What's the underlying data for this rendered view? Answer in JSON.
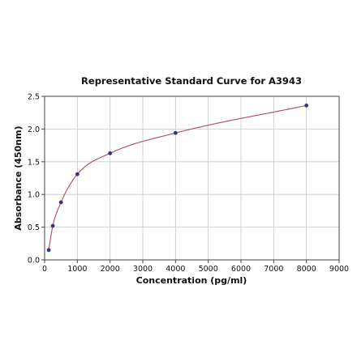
{
  "chart_data": {
    "type": "scatter",
    "title": "Representative Standard Curve for A3943",
    "xlabel": "Concentration (pg/ml)",
    "ylabel": "Absorbance (450nm)",
    "xlim": [
      0,
      9000
    ],
    "ylim": [
      0,
      2.5
    ],
    "xticks": [
      "0",
      "1000",
      "2000",
      "3000",
      "4000",
      "5000",
      "6000",
      "7000",
      "8000",
      "9000"
    ],
    "yticks": [
      "0.0",
      "0.5",
      "1.0",
      "1.5",
      "2.0",
      "2.5"
    ],
    "grid": true,
    "series": [
      {
        "x": [
          125,
          250,
          500,
          1000,
          2000,
          4000,
          8000
        ],
        "y": [
          0.15,
          0.52,
          0.88,
          1.31,
          1.63,
          1.94,
          2.36
        ],
        "fit_curve": true
      }
    ],
    "colors": {
      "points": "#2e3a78",
      "curve": "#b5485a",
      "grid": "#c8c8c8"
    }
  }
}
